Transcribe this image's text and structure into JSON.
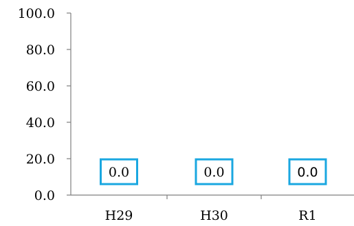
{
  "chart_data": {
    "type": "bar",
    "title": "",
    "xlabel": "",
    "ylabel": "",
    "categories": [
      "H29",
      "H30",
      "R1"
    ],
    "series": [
      {
        "values": [
          0.0,
          0.0,
          0.0
        ],
        "data_labels": [
          "0.0",
          "0.0",
          "0.0"
        ]
      }
    ],
    "ylim": [
      0,
      100
    ],
    "yticks": [
      0,
      20,
      40,
      60,
      80,
      100
    ],
    "ytick_labels": [
      "0.0",
      "20.0",
      "40.0",
      "60.0",
      "80.0",
      "100.0"
    ],
    "grid": false,
    "legend": "none",
    "colors": {
      "axis": "#7f7f7f",
      "label_border": "#1aa7e0",
      "text": "#000000"
    }
  }
}
